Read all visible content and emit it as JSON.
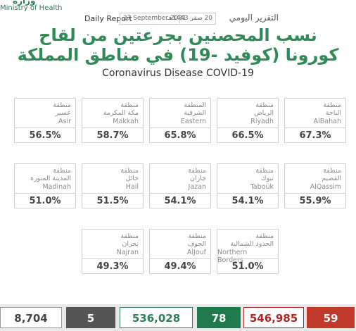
{
  "header": {
    "ministry_ar": "وزارة",
    "ministry_en": "Ministry of Health",
    "report_en": "Daily Report",
    "date_en": "27 September 2021",
    "date_ar": "20 صفر 1443هـ",
    "report_ar": "التقرير اليومي",
    "title_lines": [
      "نسب المحصنين بجرعتين من لقاح",
      "كورونا (كوفيد -19) في مناطق المملكة"
    ],
    "subtitle": "Coronavirus Disease COVID-19"
  },
  "regions": {
    "rows": [
      [
        {
          "ar": [
            "منطقة",
            "عسير"
          ],
          "en": "Asir",
          "percent": "56.5%"
        },
        {
          "ar": [
            "منطقة",
            "مكة المكرمة"
          ],
          "en": "Makkah",
          "percent": "58.7%"
        },
        {
          "ar": [
            "المنطقة",
            "الشرقية"
          ],
          "en": "Eastern",
          "percent": "65.8%"
        },
        {
          "ar": [
            "منطقة",
            "الرياض"
          ],
          "en": "Riyadh",
          "percent": "66.5%"
        },
        {
          "ar": [
            "منطقة",
            "الباحة"
          ],
          "en": "AlBahah",
          "percent": "67.3%"
        }
      ],
      [
        {
          "ar": [
            "منطقة",
            "المدينة المنورة"
          ],
          "en": "Madinah",
          "percent": "51.0%"
        },
        {
          "ar": [
            "منطقة",
            "حائل"
          ],
          "en": "Hail",
          "percent": "51.5%"
        },
        {
          "ar": [
            "منطقة",
            "جازان"
          ],
          "en": "Jazan",
          "percent": "54.1%"
        },
        {
          "ar": [
            "منطقة",
            "تبوك"
          ],
          "en": "Tabouk",
          "percent": "54.1%"
        },
        {
          "ar": [
            "منطقة",
            "القصيم"
          ],
          "en": "AlQassim",
          "percent": "55.9%"
        }
      ],
      [
        {
          "ar": [
            "منطقة",
            "نجران"
          ],
          "en": "Najran",
          "percent": "49.3%"
        },
        {
          "ar": [
            "منطقة",
            "الجوف"
          ],
          "en": "AlJouf",
          "percent": "49.4%"
        },
        {
          "ar": [
            "منطقة",
            "الحدود الشمالية"
          ],
          "en": "Northern Borders",
          "percent": "51.0%"
        }
      ]
    ]
  },
  "stats": [
    "8,704",
    "5",
    "536,028",
    "78",
    "546,985",
    "59"
  ]
}
